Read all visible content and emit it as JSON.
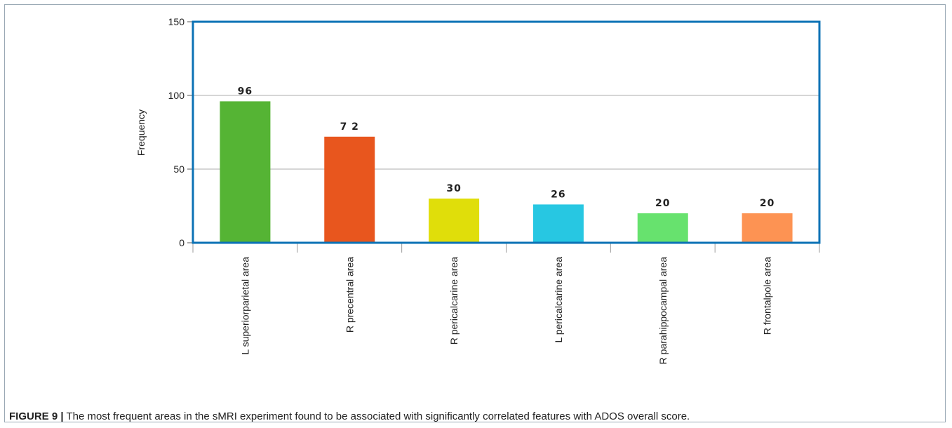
{
  "caption": {
    "label": "FIGURE 9 |",
    "text": " The most frequent areas in the sMRI experiment found to be associated with significantly correlated features with ADOS overall score."
  },
  "chart_data": {
    "type": "bar",
    "ylabel": "Frequency",
    "xlabel": "",
    "ylim": [
      0,
      150
    ],
    "yticks": [
      0,
      50,
      100,
      150
    ],
    "grid": true,
    "categories": [
      "L superiorparietal area",
      "R precentral area",
      "R pericalcarine area",
      "L pericalcarine area",
      "R parahippocampal area",
      "R frontalpole area"
    ],
    "values": [
      96,
      72,
      30,
      26,
      20,
      20
    ],
    "data_labels": [
      "96",
      "7 2",
      "30",
      "26",
      "20",
      "20"
    ],
    "colors": [
      "#55b434",
      "#e8561e",
      "#e0de0a",
      "#27c7e2",
      "#67e26e",
      "#fd9353"
    ]
  },
  "styles": {
    "frame_color": "#0b72b5",
    "grid_color": "#c8c8c8"
  }
}
